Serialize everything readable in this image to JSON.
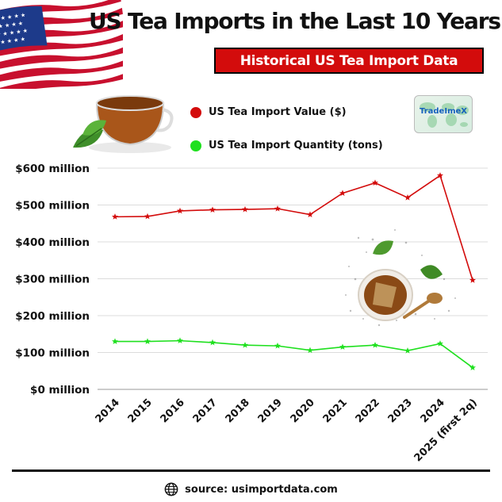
{
  "header": {
    "title": "US Tea Imports in the Last 10 Years",
    "subtitle": "Historical US Tea Import Data"
  },
  "logo": {
    "text": "TradeImeX"
  },
  "source": "source: usimportdata.com",
  "colors": {
    "value_series": "#d30c0c",
    "quantity_series": "#1ee01e",
    "subtitle_bg": "#d30c0c"
  },
  "icons": [
    "us-flag-icon",
    "teacup-icon",
    "globe-icon",
    "tea-decoration-icon"
  ],
  "chart_data": {
    "type": "line",
    "categories": [
      "2014",
      "2015",
      "2016",
      "2017",
      "2018",
      "2019",
      "2020",
      "2021",
      "2022",
      "2023",
      "2024",
      "2025 (first 2q)"
    ],
    "y_ticks": [
      "$0 million",
      "$100 million",
      "$200 million",
      "$300 million",
      "$400 million",
      "$500 million",
      "$600 million"
    ],
    "ylim": [
      0,
      600
    ],
    "grid": true,
    "legend_position": "top",
    "series": [
      {
        "name": "US Tea Import Value ($)",
        "color": "#d30c0c",
        "values": [
          468,
          469,
          484,
          487,
          488,
          490,
          474,
          532,
          560,
          520,
          580,
          296
        ]
      },
      {
        "name": "US Tea Import Quantity (tons)",
        "color": "#1ee01e",
        "values": [
          130,
          130,
          132,
          127,
          120,
          118,
          106,
          115,
          120,
          105,
          124,
          59
        ]
      }
    ]
  }
}
